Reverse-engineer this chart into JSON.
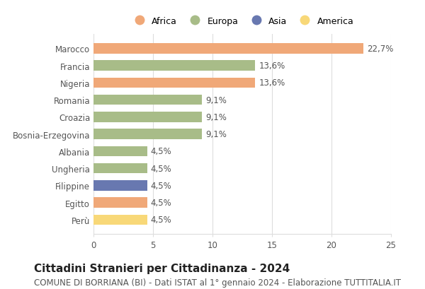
{
  "countries": [
    "Marocco",
    "Francia",
    "Nigeria",
    "Romania",
    "Croazia",
    "Bosnia-Erzegovina",
    "Albania",
    "Ungheria",
    "Filippine",
    "Egitto",
    "Perù"
  ],
  "values": [
    22.7,
    13.6,
    13.6,
    9.1,
    9.1,
    9.1,
    4.5,
    4.5,
    4.5,
    4.5,
    4.5
  ],
  "labels": [
    "22,7%",
    "13,6%",
    "13,6%",
    "9,1%",
    "9,1%",
    "9,1%",
    "4,5%",
    "4,5%",
    "4,5%",
    "4,5%",
    "4,5%"
  ],
  "colors": [
    "#f0a878",
    "#a8bc88",
    "#f0a878",
    "#a8bc88",
    "#a8bc88",
    "#a8bc88",
    "#a8bc88",
    "#a8bc88",
    "#6878b0",
    "#f0a878",
    "#f8d878"
  ],
  "legend_labels": [
    "Africa",
    "Europa",
    "Asia",
    "America"
  ],
  "legend_colors": [
    "#f0a878",
    "#a8bc88",
    "#6878b0",
    "#f8d878"
  ],
  "xlim": [
    0,
    25
  ],
  "xticks": [
    0,
    5,
    10,
    15,
    20,
    25
  ],
  "title": "Cittadini Stranieri per Cittadinanza - 2024",
  "subtitle": "COMUNE DI BORRIANA (BI) - Dati ISTAT al 1° gennaio 2024 - Elaborazione TUTTITALIA.IT",
  "title_fontsize": 11,
  "subtitle_fontsize": 8.5,
  "label_fontsize": 8.5,
  "tick_fontsize": 8.5,
  "legend_fontsize": 9,
  "bar_height": 0.6,
  "background_color": "#ffffff",
  "grid_color": "#dddddd"
}
